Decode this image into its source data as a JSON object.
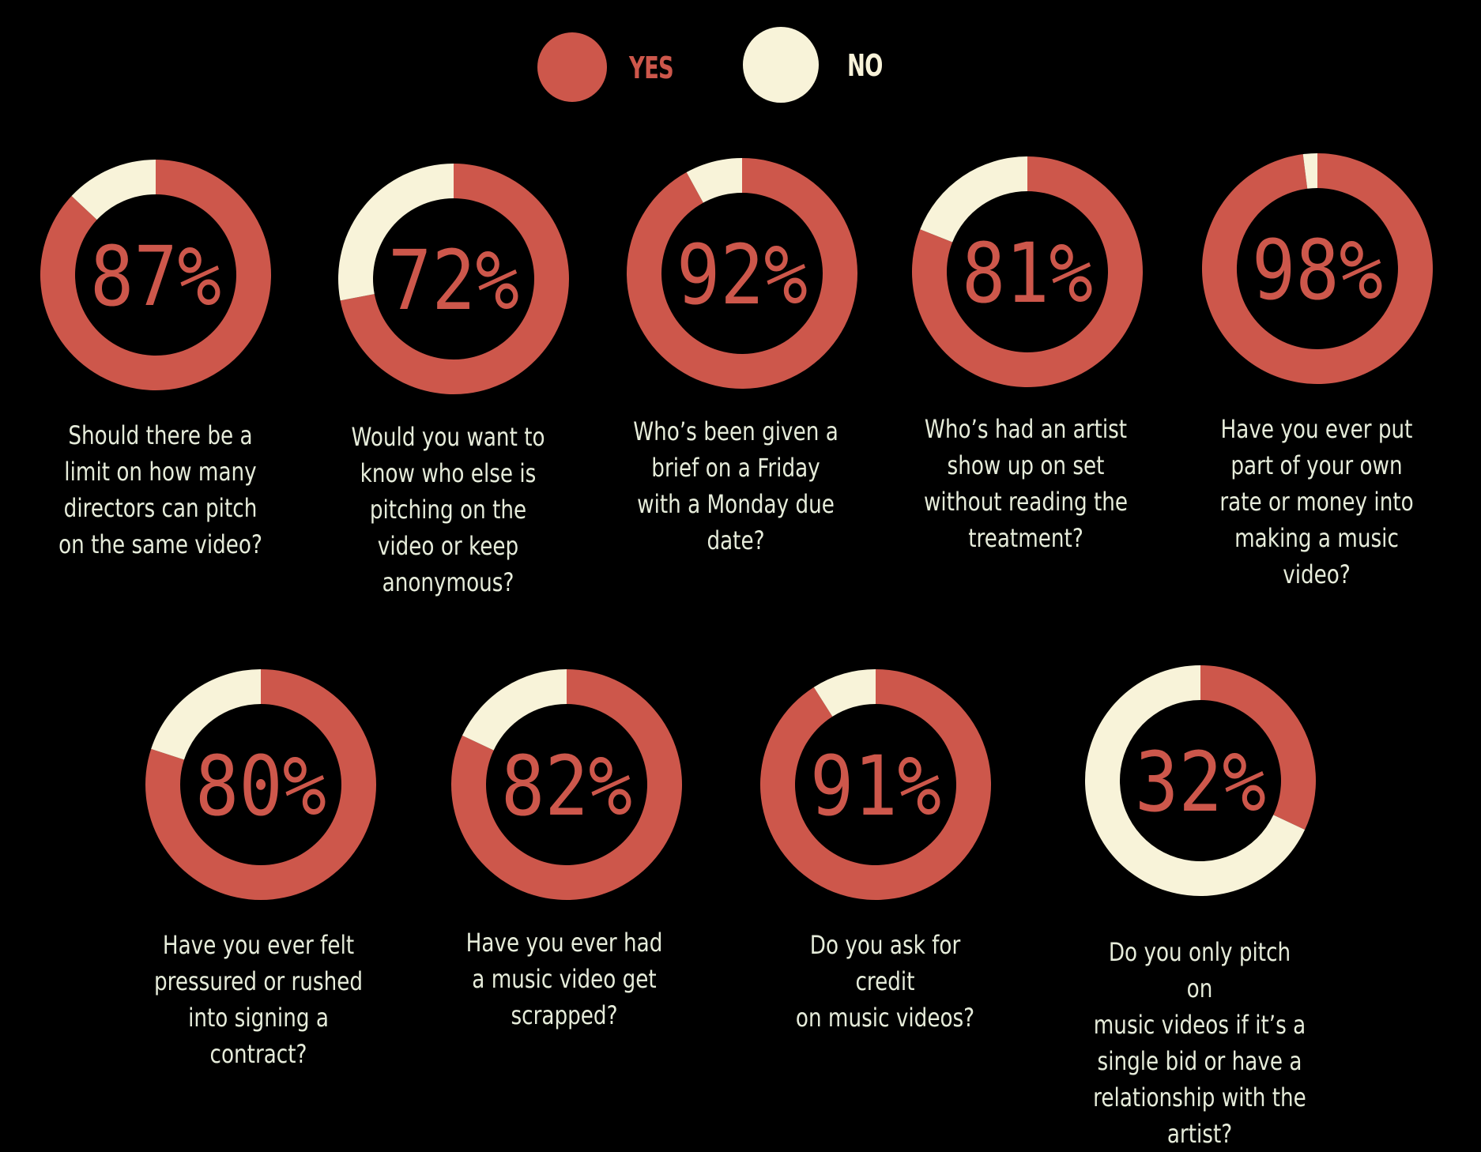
{
  "legend": {
    "yes_label": "YES",
    "no_label": "NO"
  },
  "colors": {
    "yes": "#cd574b",
    "no": "#f8f3d9",
    "background": "#000000",
    "question_text": "#e6ecda"
  },
  "chart_data": {
    "type": "pie",
    "variant": "donut-grid",
    "series": [
      {
        "name": "YES",
        "color": "#cd574b"
      },
      {
        "name": "NO",
        "color": "#f8f3d9"
      }
    ],
    "items": [
      {
        "label": "87%",
        "yes": 87,
        "no": 13,
        "question": "Should there be a\nlimit on how many\ndirectors can pitch\non the same video?"
      },
      {
        "label": "72%",
        "yes": 72,
        "no": 28,
        "question": "Would you want to\nknow who else is\npitching on the\nvideo or keep\nanonymous?"
      },
      {
        "label": "92%",
        "yes": 92,
        "no": 8,
        "question": "Who’s been given a\nbrief on a Friday\nwith a Monday due\ndate?"
      },
      {
        "label": "81%",
        "yes": 81,
        "no": 19,
        "question": "Who’s had an artist\nshow up on set\nwithout reading the\ntreatment?"
      },
      {
        "label": "98%",
        "yes": 98,
        "no": 2,
        "question": "Have you ever put\npart of your own\nrate or money into\nmaking a music\nvideo?"
      },
      {
        "label": "80%",
        "yes": 80,
        "no": 20,
        "question": "Have you ever felt\npressured or rushed\ninto signing a\ncontract?"
      },
      {
        "label": "82%",
        "yes": 82,
        "no": 18,
        "question": "Have you ever had\na music video get\nscrapped?"
      },
      {
        "label": "91%",
        "yes": 91,
        "no": 9,
        "question": "Do you ask for credit\non music videos?"
      },
      {
        "label": "32%",
        "yes": 32,
        "no": 68,
        "question": "Do you only pitch on\nmusic videos if it’s a\nsingle bid or have a\nrelationship with the\nartist?"
      }
    ]
  }
}
